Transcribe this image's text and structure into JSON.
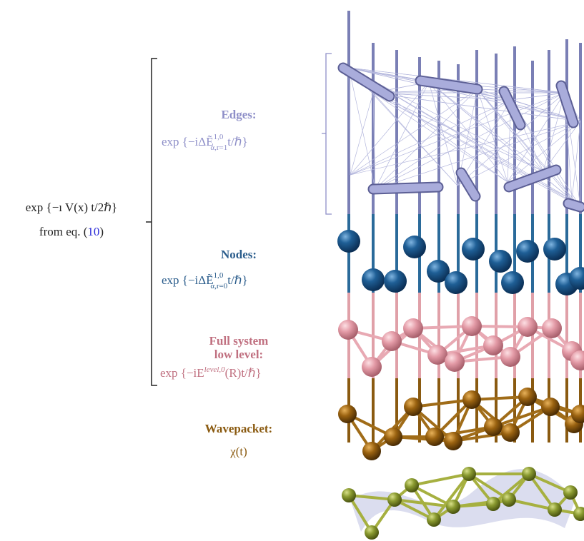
{
  "left": {
    "expression": "exp {−ı V(x) t/2ℏ}",
    "reference": {
      "prefix": "from eq. (",
      "number": "10",
      "suffix": ")"
    }
  },
  "edges": {
    "title": "Edges:",
    "formula": {
      "lead": "exp {−iΔ",
      "symbol": "Ẽ",
      "superscript": "1,0",
      "subscript": "α,r=1",
      "tail": "t/ℏ}"
    }
  },
  "nodes": {
    "title": "Nodes:",
    "formula": {
      "lead": "exp {−iΔ",
      "symbol": "Ẽ",
      "superscript": "1,0",
      "subscript": "α,r=0",
      "tail": "t/ℏ}"
    }
  },
  "full_system": {
    "title_lines": [
      "Full system",
      "low level:"
    ],
    "formula": {
      "lead": "exp {−iE",
      "superscript": "level,0",
      "tail": "(R)t/ℏ}"
    }
  },
  "wavepacket": {
    "title": "Wavepacket:",
    "formula": "χ(t)"
  }
}
